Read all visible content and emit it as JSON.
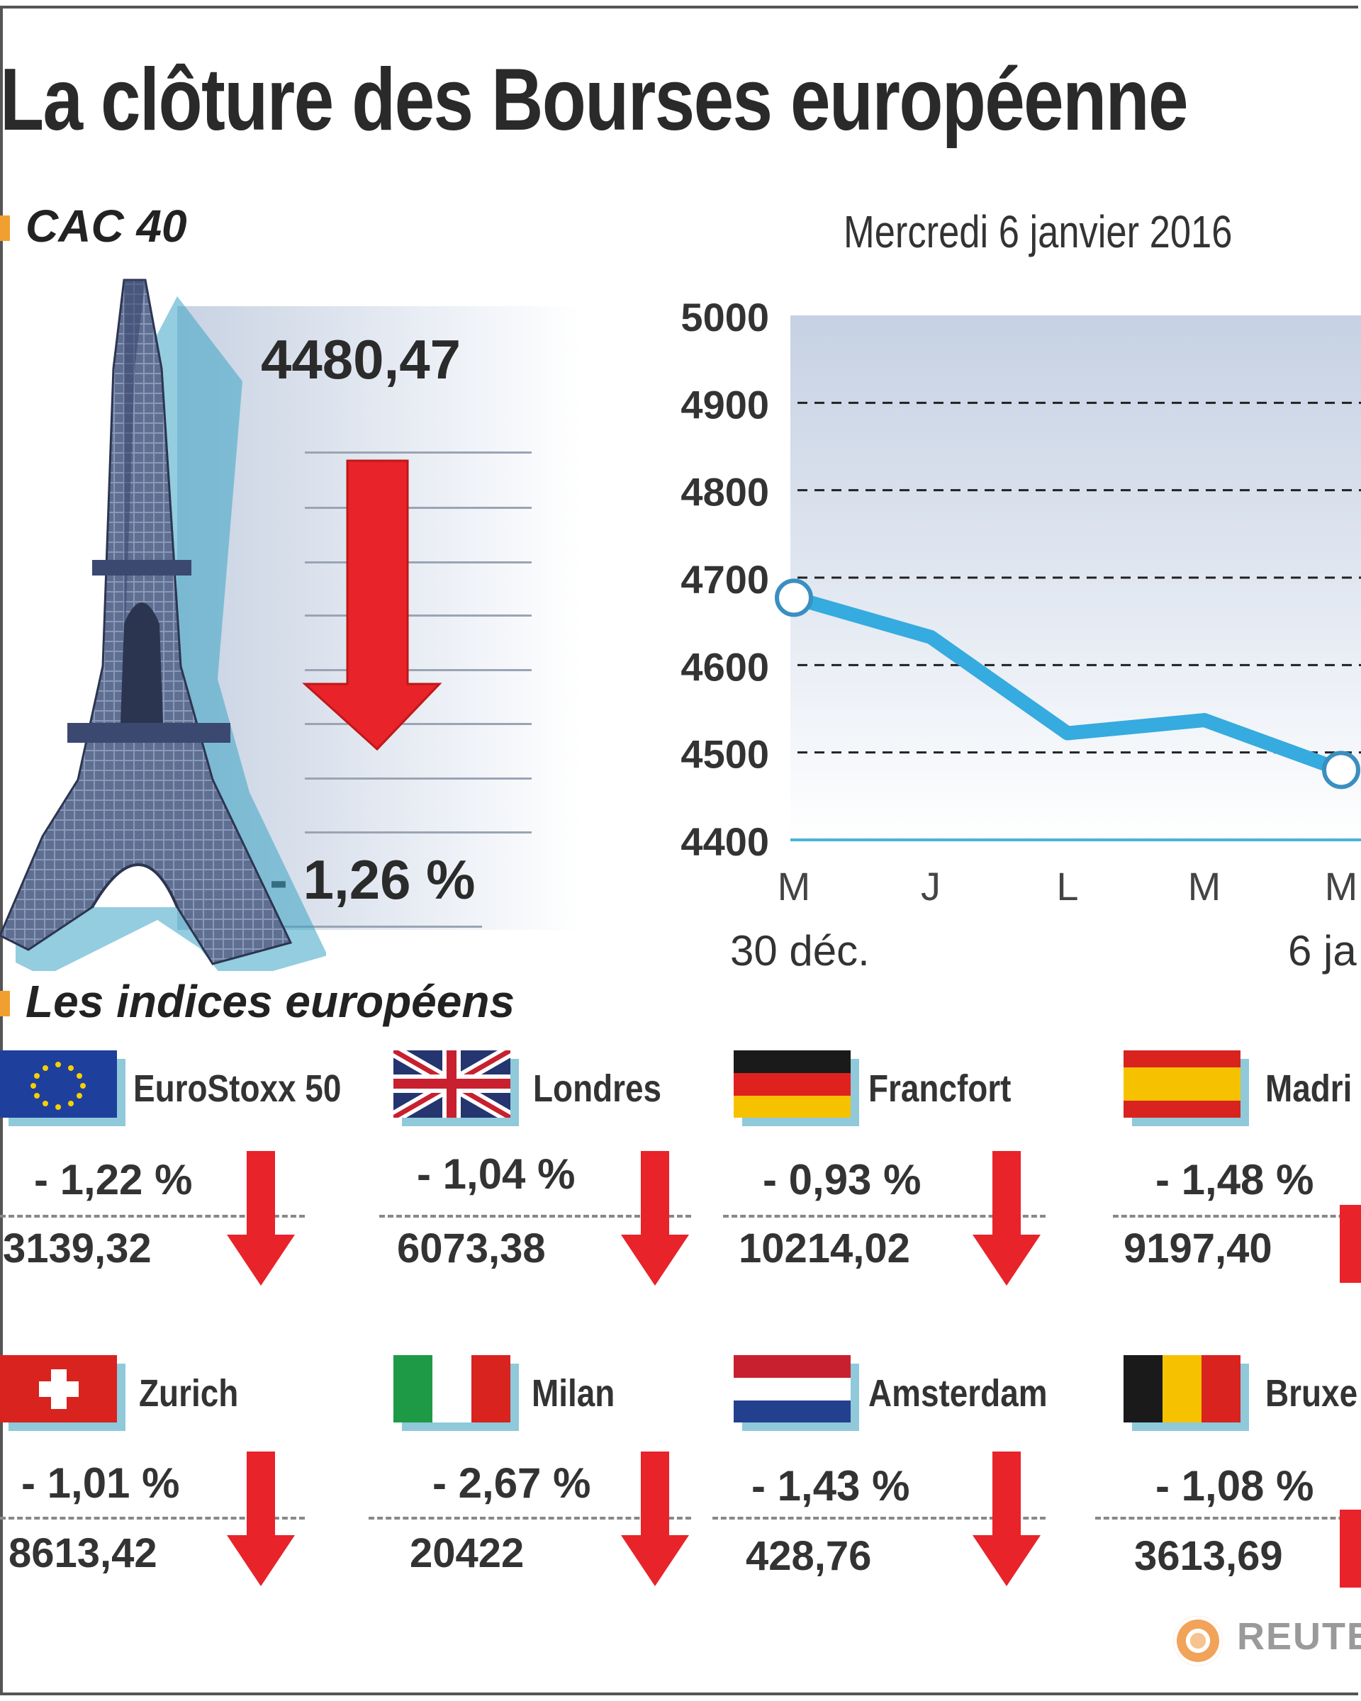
{
  "title": "La clôture des Bourses européenne",
  "cac": {
    "label": "CAC 40",
    "date": "Mercredi 6 janvier 2016",
    "value": "4480,47",
    "change": "- 1,26 %"
  },
  "chart_data": {
    "type": "line",
    "title": "",
    "xlabel": "",
    "ylabel": "",
    "categories": [
      "M",
      "J",
      "L",
      "M",
      "M"
    ],
    "x_date_labels": [
      "30 déc.",
      "6 ja"
    ],
    "series": [
      {
        "values": [
          4677,
          4632,
          4522,
          4537,
          4480
        ]
      }
    ],
    "ylim": [
      4400,
      5000
    ],
    "yticks": [
      4400,
      4500,
      4600,
      4700,
      4800,
      4900,
      5000
    ],
    "grid": true,
    "line_color": "#35abdf"
  },
  "indices_section": {
    "title": "Les indices européens"
  },
  "indices": [
    {
      "name": "EuroStoxx 50",
      "change": "- 1,22  %",
      "value": "3139,32",
      "flag": "eu-flag"
    },
    {
      "name": "Londres",
      "change": "- 1,04  %",
      "value": "6073,38",
      "flag": "uk-flag"
    },
    {
      "name": "Francfort",
      "change": "- 0,93  %",
      "value": "10214,02",
      "flag": "germany-flag"
    },
    {
      "name": "Madri",
      "change": "- 1,48  %",
      "value": "9197,40",
      "flag": "spain-flag"
    },
    {
      "name": "Zurich",
      "change": "- 1,01  %",
      "value": "8613,42",
      "flag": "switzerland-flag"
    },
    {
      "name": "Milan",
      "change": "- 2,67  %",
      "value": "20422",
      "flag": "italy-flag"
    },
    {
      "name": "Amsterdam",
      "change": "- 1,43  %",
      "value": "428,76",
      "flag": "netherlands-flag"
    },
    {
      "name": "Bruxe",
      "change": "- 1,08  %",
      "value": "3613,69",
      "flag": "belgium-flag"
    }
  ],
  "source": "REUTE",
  "colors": {
    "arrow": "#e8232a",
    "accent": "#f0a030",
    "line": "#35abdf"
  }
}
